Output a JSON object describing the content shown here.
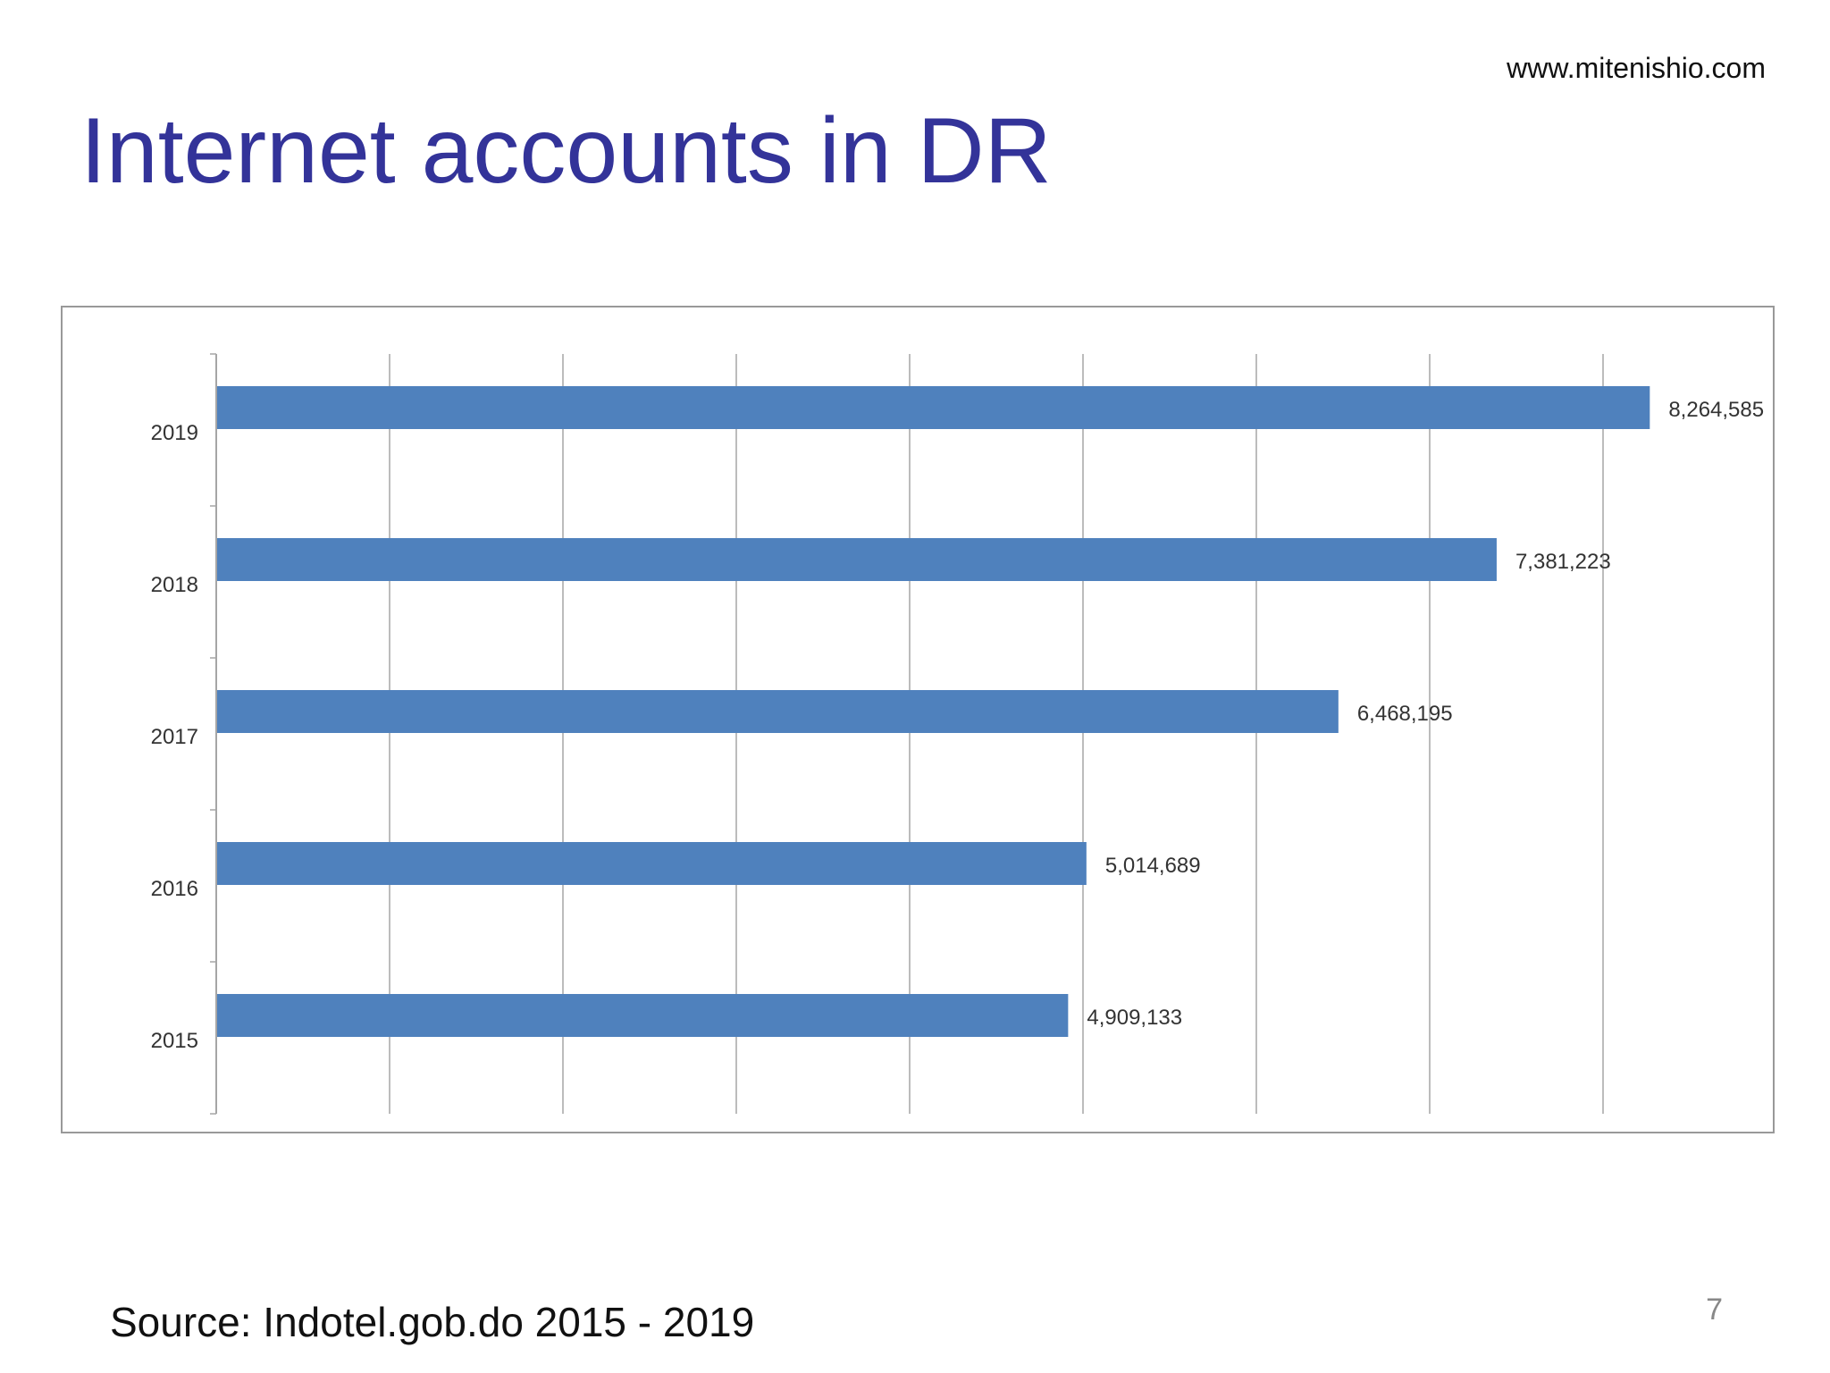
{
  "slide": {
    "website": "www.mitenishio.com",
    "title": "Internet accounts in DR",
    "source": "Source:  Indotel.gob.do 2015 - 2019",
    "page_number": "7"
  },
  "colors": {
    "title": "#333399",
    "bar": "#4f81bd",
    "grid": "#a6a6a6",
    "text": "#333333"
  },
  "chart_data": {
    "type": "bar",
    "orientation": "horizontal",
    "categories": [
      "2019",
      "2018",
      "2017",
      "2016",
      "2015"
    ],
    "values": [
      8264585,
      7381223,
      6468195,
      5014689,
      4909133
    ],
    "data_labels": [
      "8,264,585",
      "7,381,223",
      "6,468,195",
      "5,014,689",
      "4,909,133"
    ],
    "xlim": [
      0,
      8250000
    ],
    "x_gridlines": [
      1000000,
      2000000,
      3000000,
      4000000,
      5000000,
      6000000,
      7000000,
      8000000
    ],
    "grid": true,
    "legend": "none",
    "title": "",
    "xlabel": "",
    "ylabel": ""
  }
}
